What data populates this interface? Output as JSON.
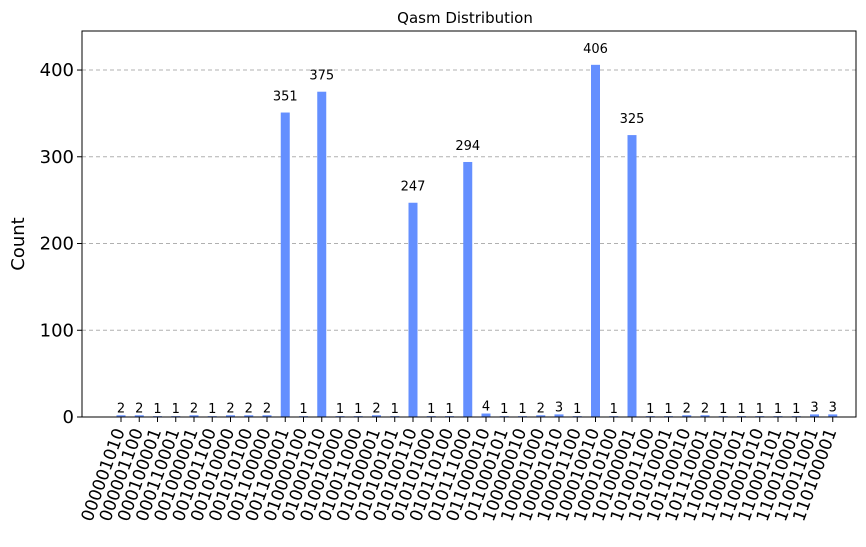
{
  "chart_data": {
    "type": "bar",
    "title": "Qasm Distribution",
    "xlabel": "",
    "ylabel": "Count",
    "ylim": [
      0,
      445
    ],
    "yticks": [
      0,
      100,
      200,
      300,
      400
    ],
    "grid": "y-dashed",
    "bar_color": "#648fff",
    "categories": [
      "000001010",
      "000001100",
      "000100001",
      "000110001",
      "001000001",
      "001001100",
      "001010000",
      "001010100",
      "001100000",
      "001100001",
      "010000100",
      "010001010",
      "010010000",
      "010011000",
      "010100001",
      "010100101",
      "010100110",
      "010101000",
      "010110100",
      "010111000",
      "011000010",
      "011000101",
      "100000010",
      "100001000",
      "100001010",
      "100001100",
      "100010010",
      "100010100",
      "101000001",
      "101001100",
      "101010001",
      "101100010",
      "101110001",
      "110000001",
      "110001001",
      "110001010",
      "110001101",
      "110010001",
      "110011001",
      "110100001"
    ],
    "values": [
      2,
      2,
      1,
      1,
      2,
      1,
      2,
      2,
      2,
      351,
      1,
      375,
      1,
      1,
      2,
      1,
      247,
      1,
      1,
      294,
      4,
      1,
      1,
      2,
      3,
      1,
      406,
      1,
      325,
      1,
      1,
      2,
      2,
      1,
      1,
      1,
      1,
      1,
      3,
      3
    ],
    "xtick_labels": [
      "000001010",
      "000001100",
      "000100001",
      "000110001",
      "001000001",
      "001001100",
      "001010000",
      "001010100",
      "001100000",
      "001100001",
      "010000100",
      "010001010",
      "010010000",
      "010011000",
      "010100001",
      "010100101",
      "010100110",
      "010101000",
      "010110100",
      "010111000",
      "011000010",
      "011000101",
      "100000010",
      "100001000",
      "100001010",
      "100001100",
      "100010010",
      "100010100",
      "101000001",
      "101001100",
      "101010001",
      "101100010",
      "101110001",
      "110000001",
      "110001001",
      "110001010",
      "110001101",
      "110010001",
      "110011001",
      "110100001"
    ]
  }
}
